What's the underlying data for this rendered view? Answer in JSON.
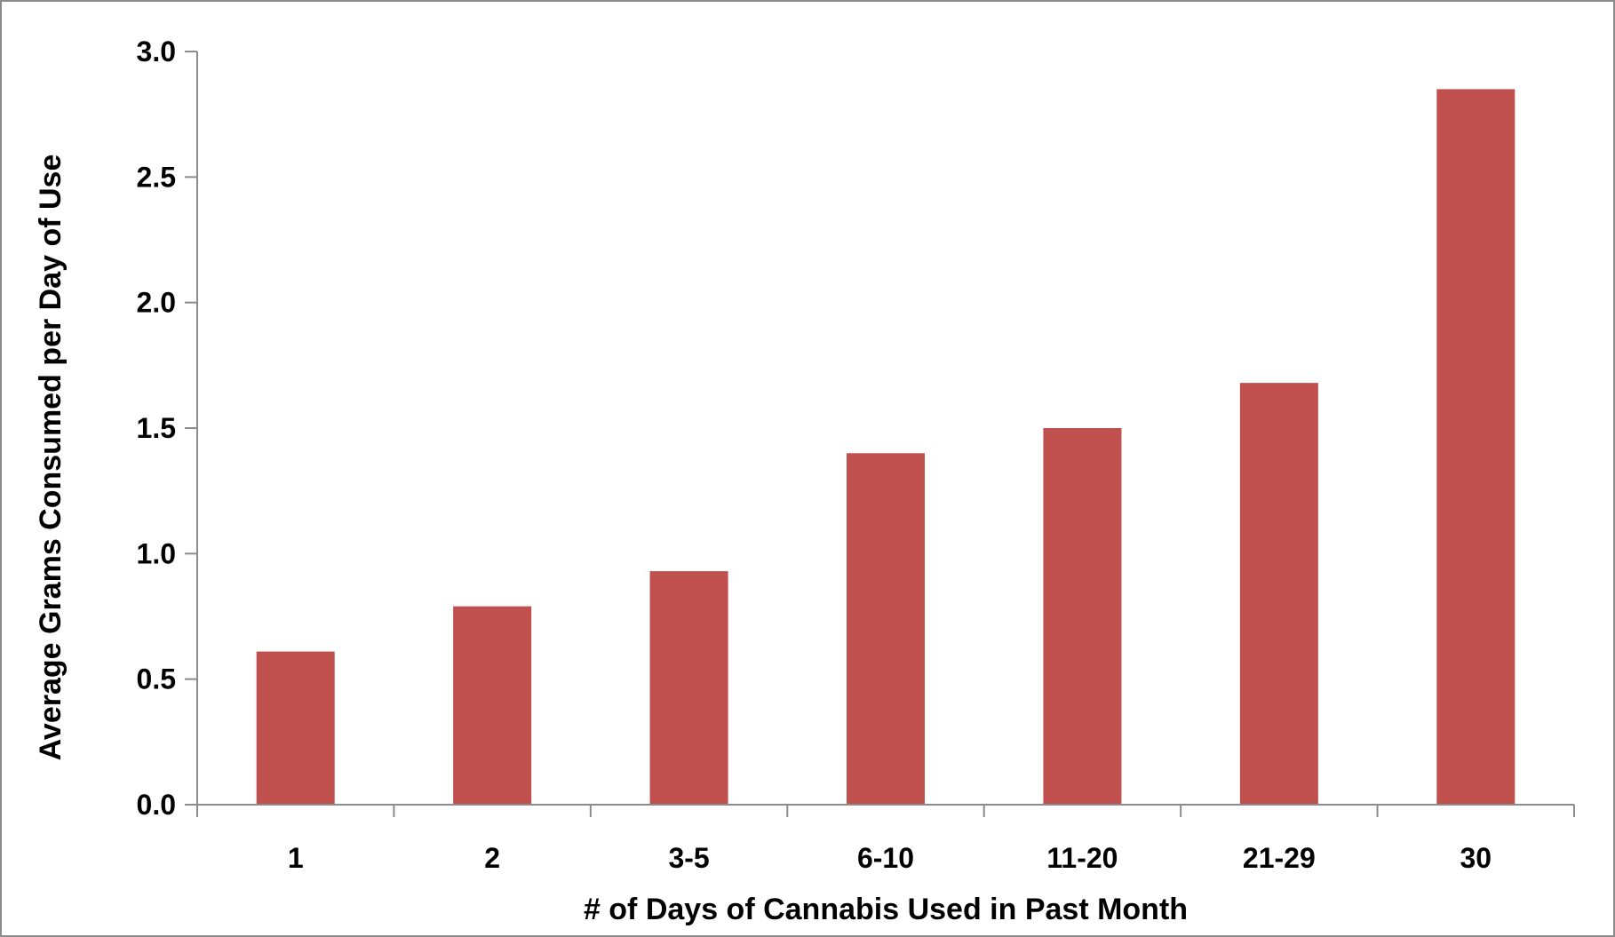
{
  "chart_data": {
    "type": "bar",
    "title": "",
    "xlabel": "# of Days of Cannabis Used in Past Month",
    "ylabel": "Average Grams Consumed per Day of Use",
    "categories": [
      "1",
      "2",
      "3-5",
      "6-10",
      "11-20",
      "21-29",
      "30"
    ],
    "values": [
      0.61,
      0.79,
      0.93,
      1.4,
      1.5,
      1.68,
      2.85
    ],
    "ylim": [
      0,
      3.0
    ],
    "yticks": [
      "0.0",
      "0.5",
      "1.0",
      "1.5",
      "2.0",
      "2.5",
      "3.0"
    ],
    "grid": false,
    "legend": "none",
    "bar_color": "#c0504d"
  }
}
